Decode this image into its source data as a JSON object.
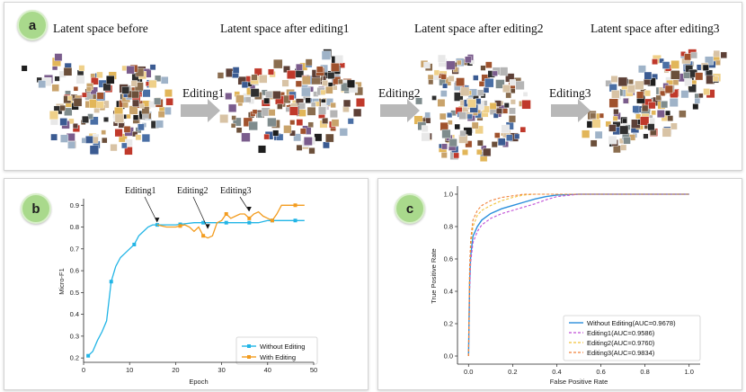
{
  "panel_a": {
    "badge": "a",
    "titles": [
      "Latent space before",
      "Latent space after editing1",
      "Latent space after editing2",
      "Latent space after editing3"
    ],
    "arrow_labels": [
      "Editing1",
      "Editing2",
      "Editing3"
    ]
  },
  "panel_b": {
    "badge": "b",
    "annotations": [
      "Editing1",
      "Editing2",
      "Editing3"
    ]
  },
  "panel_c": {
    "badge": "c"
  },
  "chart_data": [
    {
      "type": "line",
      "xlabel": "Epoch",
      "ylabel": "Micro-F1",
      "xlim": [
        0,
        50
      ],
      "ylim": [
        0.18,
        0.93
      ],
      "xticks": [
        0,
        10,
        20,
        30,
        40,
        50
      ],
      "yticks": [
        0.2,
        0.3,
        0.4,
        0.5,
        0.6,
        0.7,
        0.8,
        0.9
      ],
      "series": [
        {
          "name": "Without Editing",
          "color": "#22b5e6",
          "marker": "square",
          "x": [
            1,
            2,
            3,
            4,
            5,
            6,
            7,
            8,
            9,
            10,
            11,
            12,
            13,
            14,
            15,
            16,
            18,
            20,
            22,
            24,
            26,
            28,
            30,
            32,
            34,
            36,
            38,
            40,
            42,
            44,
            46,
            48
          ],
          "y": [
            0.21,
            0.23,
            0.28,
            0.32,
            0.37,
            0.55,
            0.62,
            0.66,
            0.68,
            0.7,
            0.72,
            0.76,
            0.78,
            0.8,
            0.81,
            0.81,
            0.81,
            0.81,
            0.815,
            0.82,
            0.82,
            0.82,
            0.82,
            0.82,
            0.82,
            0.82,
            0.82,
            0.83,
            0.83,
            0.83,
            0.83,
            0.83
          ],
          "markers_at": [
            1,
            6,
            11,
            16,
            21,
            26,
            31,
            36,
            41,
            46
          ]
        },
        {
          "name": "With Editing",
          "color": "#f39c1f",
          "marker": "square",
          "x": [
            16,
            18,
            20,
            22,
            23,
            24,
            25,
            26,
            27,
            28,
            29,
            30,
            31,
            32,
            33,
            34,
            35,
            36,
            37,
            38,
            39,
            40,
            41,
            42,
            43,
            44,
            46,
            48
          ],
          "y": [
            0.81,
            0.8,
            0.8,
            0.81,
            0.8,
            0.78,
            0.8,
            0.76,
            0.75,
            0.76,
            0.82,
            0.83,
            0.86,
            0.84,
            0.85,
            0.86,
            0.86,
            0.84,
            0.86,
            0.87,
            0.85,
            0.84,
            0.83,
            0.86,
            0.9,
            0.9,
            0.9,
            0.9
          ],
          "markers_at": [
            21,
            26,
            31,
            36,
            41,
            46
          ]
        }
      ],
      "annotation_points": [
        [
          16,
          0.81
        ],
        [
          27,
          0.78
        ],
        [
          36,
          0.86
        ]
      ]
    },
    {
      "type": "line",
      "xlabel": "False Positive Rate",
      "ylabel": "True Positive Rate",
      "xlim": [
        -0.05,
        1.05
      ],
      "ylim": [
        -0.05,
        1.05
      ],
      "xticks": [
        0.0,
        0.2,
        0.4,
        0.6,
        0.8,
        1.0
      ],
      "yticks": [
        0.0,
        0.2,
        0.4,
        0.6,
        0.8,
        1.0
      ],
      "series": [
        {
          "name": "Without Editing(AUC=0.9678)",
          "color": "#2a8fdc",
          "dash": "solid",
          "x": [
            0.0,
            0.005,
            0.01,
            0.02,
            0.04,
            0.06,
            0.1,
            0.15,
            0.2,
            0.25,
            0.3,
            0.35,
            0.4,
            0.5,
            1.0
          ],
          "y": [
            0.0,
            0.45,
            0.62,
            0.74,
            0.8,
            0.84,
            0.88,
            0.91,
            0.93,
            0.95,
            0.97,
            0.985,
            0.995,
            1.0,
            1.0
          ]
        },
        {
          "name": "Editing1(AUC=0.9586)",
          "color": "#c04fd6",
          "dash": "dashed",
          "x": [
            0.0,
            0.005,
            0.01,
            0.02,
            0.04,
            0.06,
            0.1,
            0.15,
            0.2,
            0.25,
            0.3,
            0.35,
            0.4,
            0.5,
            1.0
          ],
          "y": [
            0.0,
            0.4,
            0.58,
            0.7,
            0.77,
            0.81,
            0.85,
            0.88,
            0.9,
            0.92,
            0.94,
            0.965,
            0.985,
            1.0,
            1.0
          ]
        },
        {
          "name": "Editing2(AUC=0.9760)",
          "color": "#f2c23a",
          "dash": "dashed",
          "x": [
            0.0,
            0.005,
            0.01,
            0.02,
            0.04,
            0.06,
            0.1,
            0.15,
            0.2,
            0.25,
            0.3,
            1.0
          ],
          "y": [
            0.0,
            0.5,
            0.68,
            0.8,
            0.87,
            0.9,
            0.93,
            0.96,
            0.98,
            0.995,
            1.0,
            1.0
          ]
        },
        {
          "name": "Editing3(AUC=0.9834)",
          "color": "#f0823a",
          "dash": "dashed",
          "x": [
            0.0,
            0.005,
            0.01,
            0.02,
            0.04,
            0.06,
            0.1,
            0.15,
            0.2,
            0.25,
            1.0
          ],
          "y": [
            0.0,
            0.55,
            0.72,
            0.84,
            0.9,
            0.93,
            0.96,
            0.98,
            0.99,
            1.0,
            1.0
          ]
        }
      ]
    }
  ]
}
